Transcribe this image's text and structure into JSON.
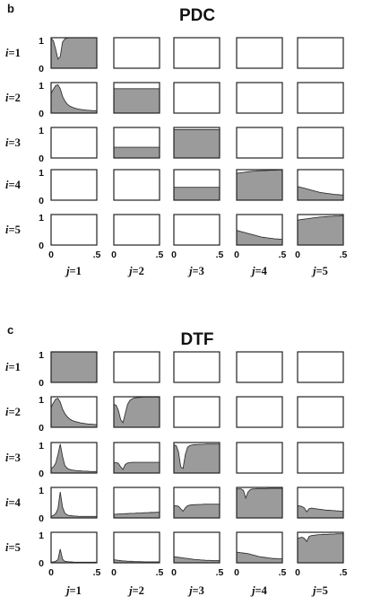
{
  "chart_data": [
    {
      "type": "area",
      "panel_letter": "b",
      "title": "PDC",
      "rows": [
        "1",
        "2",
        "3",
        "4",
        "5"
      ],
      "cols": [
        "1",
        "2",
        "3",
        "4",
        "5"
      ],
      "row_prefix": "i=",
      "col_prefix": "j=",
      "xlim": [
        0,
        0.5
      ],
      "ylim": [
        0,
        1
      ],
      "x_ticks": [
        "0",
        ".5"
      ],
      "y_ticks": [
        "0",
        "1"
      ],
      "x": [
        0,
        0.025,
        0.05,
        0.075,
        0.1,
        0.125,
        0.15,
        0.175,
        0.2,
        0.225,
        0.25,
        0.275,
        0.3,
        0.325,
        0.35,
        0.375,
        0.4,
        0.425,
        0.45,
        0.475,
        0.5
      ],
      "grid": [
        [
          [
            0.98,
            0.9,
            0.62,
            0.3,
            0.38,
            0.85,
            0.96,
            0.99,
            1,
            1,
            1,
            1,
            1,
            1,
            1,
            1,
            1,
            1,
            1,
            1,
            1
          ],
          null,
          null,
          null,
          null
        ],
        [
          [
            0.65,
            0.78,
            0.9,
            0.93,
            0.8,
            0.55,
            0.4,
            0.3,
            0.24,
            0.2,
            0.17,
            0.15,
            0.13,
            0.12,
            0.11,
            0.1,
            0.09,
            0.09,
            0.08,
            0.08,
            0.08
          ],
          [
            0.8,
            0.8,
            0.8,
            0.8,
            0.8,
            0.8,
            0.8,
            0.8,
            0.8,
            0.8,
            0.8,
            0.8,
            0.8,
            0.8,
            0.8,
            0.8,
            0.8,
            0.8,
            0.8,
            0.8,
            0.8
          ],
          null,
          null,
          null
        ],
        [
          null,
          [
            0.35,
            0.35,
            0.35,
            0.35,
            0.35,
            0.35,
            0.35,
            0.35,
            0.35,
            0.35,
            0.35,
            0.35,
            0.35,
            0.35,
            0.35,
            0.35,
            0.35,
            0.35,
            0.35,
            0.35,
            0.35
          ],
          [
            0.93,
            0.93,
            0.93,
            0.93,
            0.93,
            0.93,
            0.93,
            0.93,
            0.93,
            0.93,
            0.93,
            0.93,
            0.93,
            0.93,
            0.93,
            0.93,
            0.93,
            0.93,
            0.93,
            0.93,
            0.93
          ],
          null,
          null
        ],
        [
          null,
          null,
          [
            0.42,
            0.42,
            0.42,
            0.42,
            0.42,
            0.42,
            0.42,
            0.42,
            0.42,
            0.42,
            0.42,
            0.42,
            0.42,
            0.42,
            0.42,
            0.42,
            0.42,
            0.42,
            0.42,
            0.42,
            0.42
          ],
          [
            0.88,
            0.89,
            0.9,
            0.91,
            0.92,
            0.93,
            0.94,
            0.95,
            0.95,
            0.96,
            0.96,
            0.97,
            0.97,
            0.97,
            0.98,
            0.98,
            0.98,
            0.98,
            0.99,
            0.99,
            0.99
          ],
          [
            0.45,
            0.43,
            0.41,
            0.39,
            0.37,
            0.35,
            0.33,
            0.31,
            0.29,
            0.27,
            0.25,
            0.24,
            0.23,
            0.22,
            0.21,
            0.2,
            0.19,
            0.18,
            0.18,
            0.17,
            0.17
          ]
        ],
        [
          null,
          null,
          null,
          [
            0.48,
            0.46,
            0.44,
            0.42,
            0.4,
            0.38,
            0.36,
            0.34,
            0.32,
            0.3,
            0.28,
            0.26,
            0.25,
            0.24,
            0.23,
            0.22,
            0.21,
            0.2,
            0.2,
            0.19,
            0.19
          ],
          [
            0.82,
            0.83,
            0.84,
            0.85,
            0.86,
            0.87,
            0.88,
            0.89,
            0.9,
            0.91,
            0.92,
            0.92,
            0.93,
            0.93,
            0.94,
            0.94,
            0.95,
            0.95,
            0.95,
            0.96,
            0.96
          ]
        ]
      ]
    },
    {
      "type": "area",
      "panel_letter": "c",
      "title": "DTF",
      "rows": [
        "1",
        "2",
        "3",
        "4",
        "5"
      ],
      "cols": [
        "1",
        "2",
        "3",
        "4",
        "5"
      ],
      "row_prefix": "i=",
      "col_prefix": "j=",
      "xlim": [
        0,
        0.5
      ],
      "ylim": [
        0,
        1
      ],
      "x_ticks": [
        "0",
        ".5"
      ],
      "y_ticks": [
        "0",
        "1"
      ],
      "x": [
        0,
        0.025,
        0.05,
        0.075,
        0.1,
        0.125,
        0.15,
        0.175,
        0.2,
        0.225,
        0.25,
        0.275,
        0.3,
        0.325,
        0.35,
        0.375,
        0.4,
        0.425,
        0.45,
        0.475,
        0.5
      ],
      "grid": [
        [
          [
            1,
            1,
            1,
            1,
            1,
            1,
            1,
            1,
            1,
            1,
            1,
            1,
            1,
            1,
            1,
            1,
            1,
            1,
            1,
            1,
            1
          ],
          null,
          null,
          null,
          null
        ],
        [
          [
            0.65,
            0.8,
            0.92,
            0.95,
            0.82,
            0.6,
            0.45,
            0.35,
            0.28,
            0.23,
            0.2,
            0.18,
            0.16,
            0.14,
            0.13,
            0.12,
            0.11,
            0.1,
            0.1,
            0.09,
            0.09
          ],
          [
            0.75,
            0.72,
            0.55,
            0.25,
            0.15,
            0.45,
            0.75,
            0.88,
            0.93,
            0.96,
            0.97,
            0.98,
            0.98,
            0.99,
            0.99,
            0.99,
            0.99,
            0.99,
            0.99,
            0.99,
            0.99
          ],
          null,
          null,
          null
        ],
        [
          [
            0.15,
            0.2,
            0.32,
            0.6,
            0.95,
            0.55,
            0.25,
            0.16,
            0.12,
            0.1,
            0.09,
            0.08,
            0.07,
            0.07,
            0.06,
            0.06,
            0.06,
            0.05,
            0.05,
            0.05,
            0.05
          ],
          [
            0.35,
            0.34,
            0.32,
            0.2,
            0.12,
            0.28,
            0.33,
            0.34,
            0.35,
            0.35,
            0.35,
            0.35,
            0.35,
            0.35,
            0.35,
            0.35,
            0.35,
            0.35,
            0.35,
            0.35,
            0.35
          ],
          [
            0.92,
            0.9,
            0.7,
            0.2,
            0.15,
            0.6,
            0.85,
            0.9,
            0.92,
            0.93,
            0.93,
            0.94,
            0.94,
            0.94,
            0.95,
            0.95,
            0.95,
            0.95,
            0.95,
            0.95,
            0.95
          ],
          null,
          null
        ],
        [
          [
            0.05,
            0.08,
            0.14,
            0.3,
            0.85,
            0.35,
            0.16,
            0.1,
            0.08,
            0.07,
            0.06,
            0.06,
            0.05,
            0.05,
            0.05,
            0.05,
            0.05,
            0.05,
            0.05,
            0.05,
            0.05
          ],
          [
            0.12,
            0.12,
            0.13,
            0.13,
            0.13,
            0.14,
            0.14,
            0.15,
            0.15,
            0.15,
            0.16,
            0.16,
            0.16,
            0.17,
            0.17,
            0.17,
            0.18,
            0.18,
            0.18,
            0.19,
            0.19
          ],
          [
            0.4,
            0.4,
            0.38,
            0.3,
            0.22,
            0.33,
            0.4,
            0.42,
            0.43,
            0.43,
            0.44,
            0.44,
            0.44,
            0.45,
            0.45,
            0.45,
            0.45,
            0.45,
            0.45,
            0.45,
            0.45
          ],
          [
            0.95,
            0.95,
            0.95,
            0.9,
            0.65,
            0.85,
            0.93,
            0.95,
            0.95,
            0.96,
            0.96,
            0.96,
            0.96,
            0.96,
            0.97,
            0.97,
            0.97,
            0.97,
            0.97,
            0.97,
            0.97
          ],
          [
            0.4,
            0.39,
            0.37,
            0.32,
            0.2,
            0.3,
            0.32,
            0.31,
            0.3,
            0.29,
            0.28,
            0.27,
            0.26,
            0.25,
            0.25,
            0.24,
            0.24,
            0.23,
            0.23,
            0.22,
            0.22
          ]
        ],
        [
          [
            0.02,
            0.03,
            0.05,
            0.1,
            0.45,
            0.12,
            0.05,
            0.04,
            0.03,
            0.03,
            0.02,
            0.02,
            0.02,
            0.02,
            0.02,
            0.02,
            0.02,
            0.02,
            0.02,
            0.02,
            0.02
          ],
          [
            0.1,
            0.09,
            0.08,
            0.07,
            0.06,
            0.06,
            0.05,
            0.05,
            0.05,
            0.04,
            0.04,
            0.04,
            0.04,
            0.03,
            0.03,
            0.03,
            0.03,
            0.03,
            0.03,
            0.03,
            0.03
          ],
          [
            0.2,
            0.19,
            0.18,
            0.17,
            0.16,
            0.15,
            0.14,
            0.13,
            0.12,
            0.11,
            0.1,
            0.1,
            0.09,
            0.09,
            0.08,
            0.08,
            0.08,
            0.07,
            0.07,
            0.07,
            0.07
          ],
          [
            0.35,
            0.34,
            0.33,
            0.32,
            0.31,
            0.3,
            0.28,
            0.26,
            0.24,
            0.22,
            0.2,
            0.19,
            0.18,
            0.17,
            0.16,
            0.15,
            0.14,
            0.14,
            0.13,
            0.13,
            0.13
          ],
          [
            0.8,
            0.82,
            0.84,
            0.8,
            0.7,
            0.86,
            0.89,
            0.9,
            0.91,
            0.92,
            0.92,
            0.93,
            0.93,
            0.93,
            0.94,
            0.94,
            0.94,
            0.95,
            0.95,
            0.95,
            0.95
          ]
        ]
      ]
    }
  ]
}
